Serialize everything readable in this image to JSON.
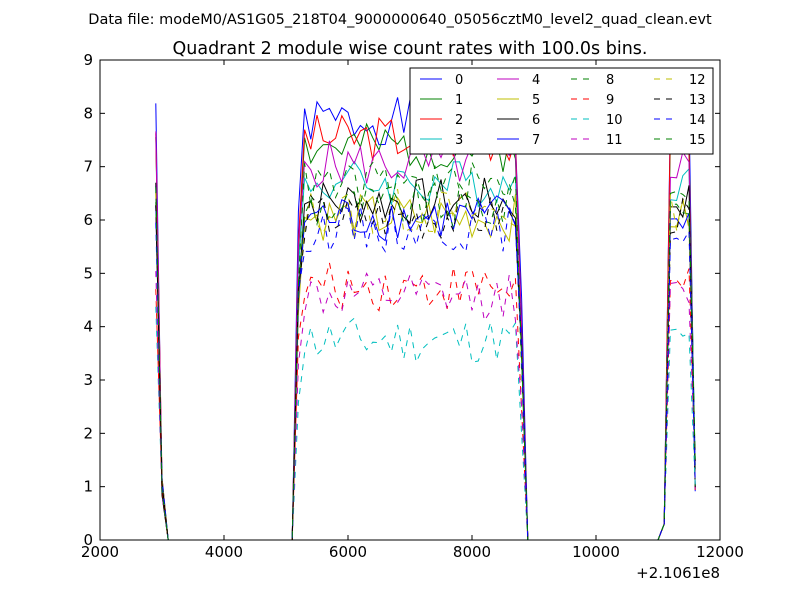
{
  "chart_data": {
    "type": "line",
    "suptitle": "Data file: modeM0/AS1G05_218T04_9000000640_05056cztM0_level2_quad_clean.evt",
    "title": "Quadrant 2 module wise count rates with 100.0s bins.",
    "xlabel": "",
    "ylabel": "",
    "x_offset_label": "+2.1061e8",
    "xlim": [
      2000,
      12000
    ],
    "ylim": [
      0,
      9
    ],
    "xticks": [
      2000,
      4000,
      6000,
      8000,
      10000,
      12000
    ],
    "yticks": [
      0,
      1,
      2,
      3,
      4,
      5,
      6,
      7,
      8,
      9
    ],
    "grid": false,
    "legend_position": "top-right",
    "series": [
      {
        "name": "0",
        "color": "#0000ff",
        "dash": "solid",
        "level": 7.85,
        "seed": 1
      },
      {
        "name": "1",
        "color": "#008000",
        "dash": "solid",
        "level": 7.35,
        "seed": 2
      },
      {
        "name": "2",
        "color": "#ff0000",
        "dash": "solid",
        "level": 7.55,
        "seed": 3
      },
      {
        "name": "3",
        "color": "#00bfbf",
        "dash": "solid",
        "level": 6.7,
        "seed": 4
      },
      {
        "name": "4",
        "color": "#bf00bf",
        "dash": "solid",
        "level": 7.05,
        "seed": 5
      },
      {
        "name": "5",
        "color": "#bfbf00",
        "dash": "solid",
        "level": 6.05,
        "seed": 6
      },
      {
        "name": "6",
        "color": "#000000",
        "dash": "solid",
        "level": 6.35,
        "seed": 7
      },
      {
        "name": "7",
        "color": "#0000ff",
        "dash": "solid",
        "level": 6.05,
        "seed": 8
      },
      {
        "name": "8",
        "color": "#008000",
        "dash": "dashed",
        "level": 6.25,
        "seed": 9
      },
      {
        "name": "9",
        "color": "#ff0000",
        "dash": "dashed",
        "level": 4.75,
        "seed": 10
      },
      {
        "name": "10",
        "color": "#00bfbf",
        "dash": "dashed",
        "level": 3.75,
        "seed": 11
      },
      {
        "name": "11",
        "color": "#bf00bf",
        "dash": "dashed",
        "level": 4.55,
        "seed": 12
      },
      {
        "name": "12",
        "color": "#bfbf00",
        "dash": "dashed",
        "level": 6.15,
        "seed": 13
      },
      {
        "name": "13",
        "color": "#000000",
        "dash": "dashed",
        "level": 6.05,
        "seed": 14
      },
      {
        "name": "14",
        "color": "#0000ff",
        "dash": "dashed",
        "level": 5.85,
        "seed": 15
      },
      {
        "name": "15",
        "color": "#008000",
        "dash": "dashed",
        "level": 6.65,
        "seed": 16
      }
    ]
  }
}
